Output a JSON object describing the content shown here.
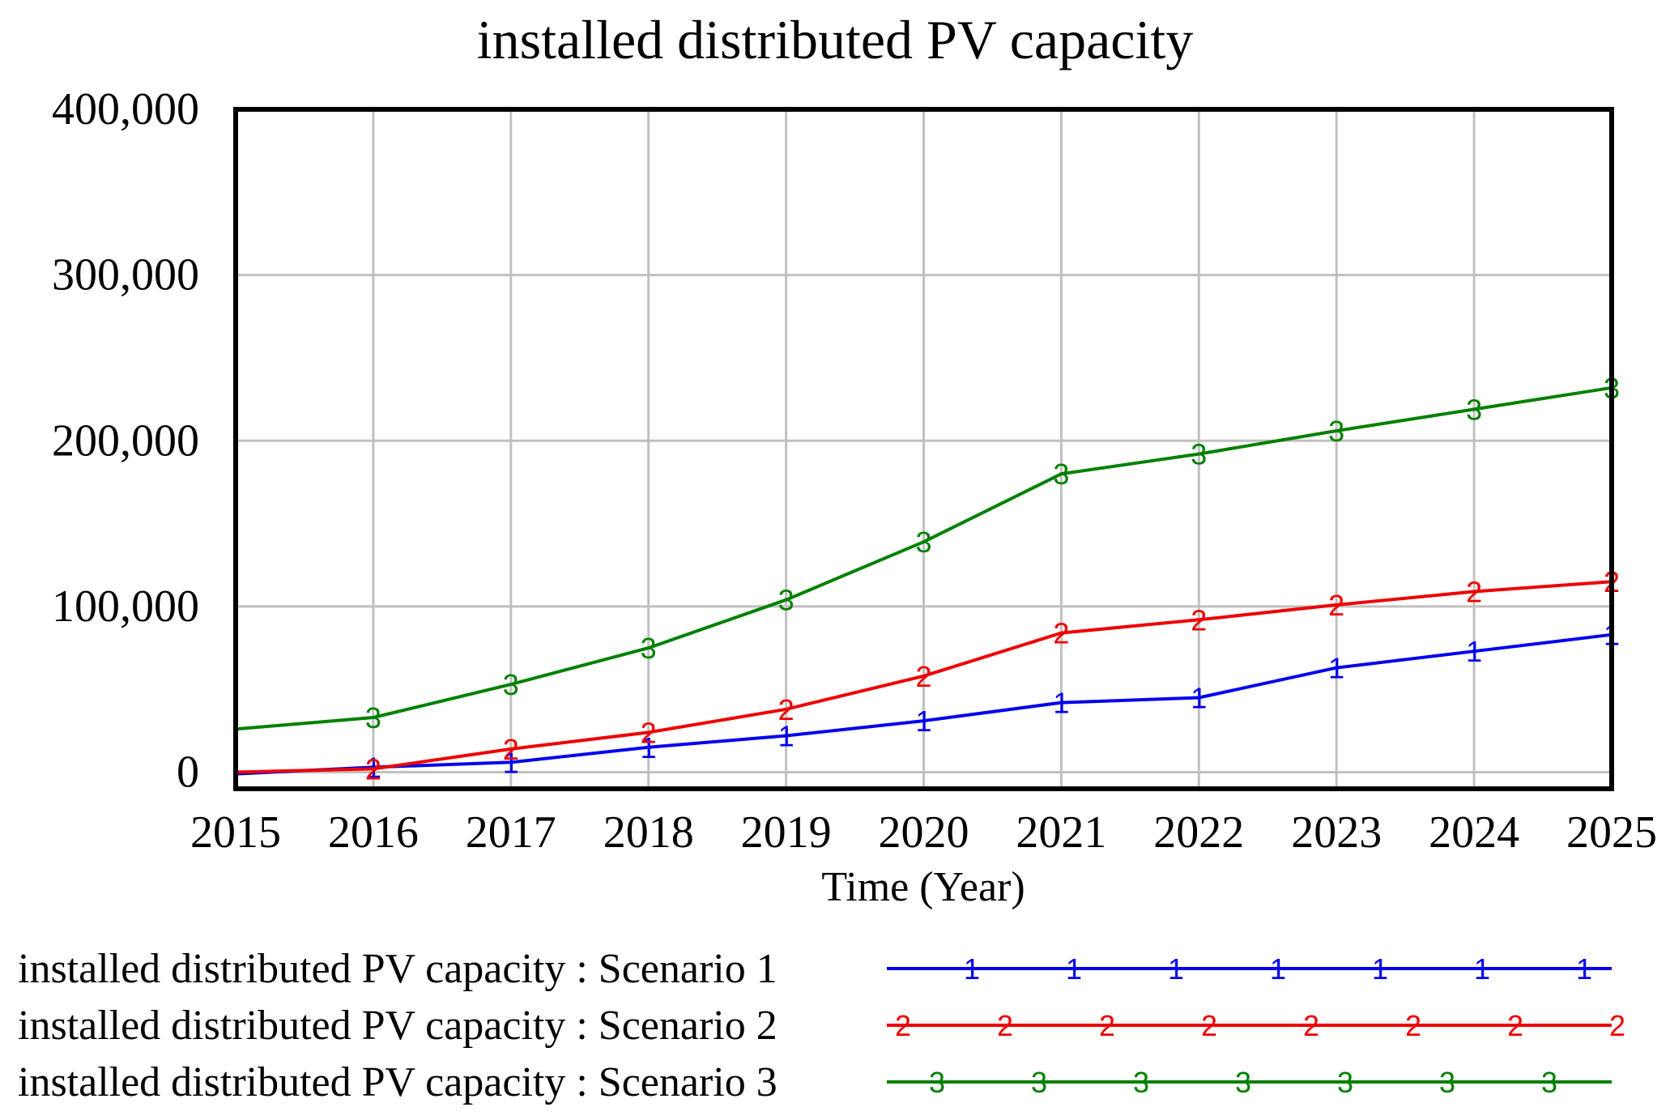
{
  "chart_data": {
    "type": "line",
    "title": "installed distributed PV capacity",
    "xlabel": "Time (Year)",
    "ylabel": "",
    "x": [
      2015,
      2016,
      2017,
      2018,
      2019,
      2020,
      2021,
      2022,
      2023,
      2024,
      2025
    ],
    "xlim": [
      2015,
      2025
    ],
    "ylim": [
      -10000,
      400000
    ],
    "x_tick_labels": [
      "2015",
      "2016",
      "2017",
      "2018",
      "2019",
      "2020",
      "2021",
      "2022",
      "2023",
      "2024",
      "2025"
    ],
    "y_ticks": [
      0,
      100000,
      200000,
      300000,
      400000
    ],
    "y_tick_labels": [
      "0",
      "100,000",
      "200,000",
      "300,000",
      "400,000"
    ],
    "grid": true,
    "legend_position": "bottom",
    "series": [
      {
        "name": "installed distributed PV capacity : Scenario 1",
        "marker": "1",
        "color": "#0000ee",
        "values": [
          -1000,
          3000,
          6000,
          15000,
          22000,
          31000,
          42000,
          45000,
          63000,
          73000,
          83000
        ]
      },
      {
        "name": "installed distributed PV capacity : Scenario 2",
        "marker": "2",
        "color": "#ee0000",
        "values": [
          0,
          2000,
          14000,
          24000,
          38000,
          58000,
          84000,
          92000,
          101000,
          109000,
          115000
        ]
      },
      {
        "name": "installed distributed PV capacity : Scenario 3",
        "marker": "3",
        "color": "#008000",
        "values": [
          26000,
          33000,
          53000,
          75000,
          104000,
          139000,
          180000,
          192000,
          206000,
          219000,
          232000
        ]
      }
    ]
  }
}
